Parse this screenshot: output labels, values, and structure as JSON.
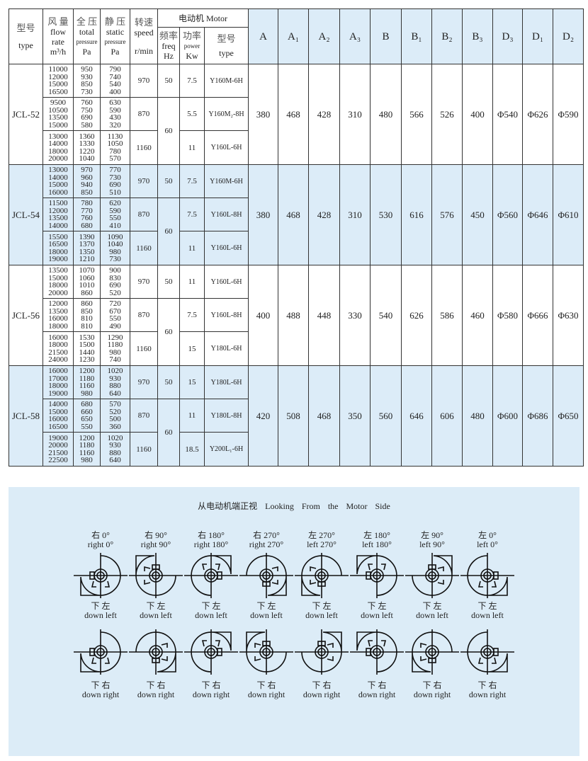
{
  "table": {
    "headers": {
      "type": {
        "cn": "型号",
        "en": "type"
      },
      "flow": {
        "cn": "风 量",
        "en1": "flow",
        "en2": "rate",
        "unit": "m³/h"
      },
      "total": {
        "cn": "全 压",
        "en1": "total",
        "en2": "pressure",
        "unit": "Pa"
      },
      "static": {
        "cn": "静 压",
        "en1": "static",
        "en2": "pressure",
        "unit": "Pa"
      },
      "speed": {
        "cn": "转速",
        "en": "speed",
        "unit": "r/min"
      },
      "motor": "电动机 Motor",
      "freq": {
        "cn": "频率",
        "en": "freq",
        "unit": "Hz"
      },
      "power": {
        "cn": "功率",
        "en": "power",
        "unit": "Kw"
      },
      "motor_type": {
        "cn": "型号",
        "en": "type"
      },
      "dims": [
        "A",
        "A₁",
        "A₂",
        "A₃",
        "B",
        "B₁",
        "B₂",
        "B₃",
        "D₃",
        "D₁",
        "D₂"
      ]
    },
    "groups": [
      {
        "model": "JCL-52",
        "freq_50": "50",
        "freq_60": "60",
        "rows": [
          {
            "flow": "11000\n12000\n15000\n16500",
            "total": "950\n930\n850\n730",
            "static": "790\n740\n540\n400",
            "speed": "970",
            "power": "7.5",
            "motor": "Y160M-6H"
          },
          {
            "flow": "9500\n10500\n13500\n15000",
            "total": "760\n750\n690\n580",
            "static": "630\n590\n430\n320",
            "speed": "870",
            "power": "5.5",
            "motor": "Y160M₂-8H"
          },
          {
            "flow": "13000\n14000\n18000\n20000",
            "total": "1360\n1330\n1220\n1040",
            "static": "1130\n1050\n780\n570",
            "speed": "1160",
            "power": "11",
            "motor": "Y160L-6H"
          }
        ],
        "dims": [
          "380",
          "468",
          "428",
          "310",
          "480",
          "566",
          "526",
          "400",
          "Φ540",
          "Φ626",
          "Φ590"
        ]
      },
      {
        "model": "JCL-54",
        "freq_50": "50",
        "freq_60": "60",
        "rows": [
          {
            "flow": "13000\n14000\n15000\n16000",
            "total": "970\n960\n940\n850",
            "static": "770\n730\n690\n510",
            "speed": "970",
            "power": "7.5",
            "motor": "Y160M-6H"
          },
          {
            "flow": "11500\n12000\n13500\n14000",
            "total": "780\n770\n760\n680",
            "static": "620\n590\n550\n410",
            "speed": "870",
            "power": "7.5",
            "motor": "Y160L-8H"
          },
          {
            "flow": "15500\n16500\n18000\n19000",
            "total": "1390\n1370\n1350\n1210",
            "static": "1090\n1040\n980\n730",
            "speed": "1160",
            "power": "11",
            "motor": "Y160L-6H"
          }
        ],
        "dims": [
          "380",
          "468",
          "428",
          "310",
          "530",
          "616",
          "576",
          "450",
          "Φ560",
          "Φ646",
          "Φ610"
        ]
      },
      {
        "model": "JCL-56",
        "freq_50": "50",
        "freq_60": "60",
        "rows": [
          {
            "flow": "13500\n15000\n18000\n20000",
            "total": "1070\n1060\n1010\n860",
            "static": "900\n830\n690\n520",
            "speed": "970",
            "power": "11",
            "motor": "Y160L-6H"
          },
          {
            "flow": "12000\n13500\n16000\n18000",
            "total": "860\n850\n810\n810",
            "static": "720\n670\n550\n490",
            "speed": "870",
            "power": "7.5",
            "motor": "Y160L-8H"
          },
          {
            "flow": "16000\n18000\n21500\n24000",
            "total": "1530\n1500\n1440\n1230",
            "static": "1290\n1180\n980\n740",
            "speed": "1160",
            "power": "15",
            "motor": "Y180L-6H"
          }
        ],
        "dims": [
          "400",
          "488",
          "448",
          "330",
          "540",
          "626",
          "586",
          "460",
          "Φ580",
          "Φ666",
          "Φ630"
        ]
      },
      {
        "model": "JCL-58",
        "freq_50": "50",
        "freq_60": "60",
        "rows": [
          {
            "flow": "16000\n17000\n18000\n19000",
            "total": "1200\n1180\n1160\n980",
            "static": "1020\n930\n880\n640",
            "speed": "970",
            "power": "15",
            "motor": "Y180L-6H"
          },
          {
            "flow": "14000\n15000\n16000\n16500",
            "total": "680\n660\n650\n550",
            "static": "570\n520\n500\n360",
            "speed": "870",
            "power": "11",
            "motor": "Y180L-8H"
          },
          {
            "flow": "19000\n20000\n21500\n22500",
            "total": "1200\n1180\n1160\n980",
            "static": "1020\n930\n880\n640",
            "speed": "1160",
            "power": "18.5",
            "motor": "Y200L₁-6H"
          }
        ],
        "dims": [
          "420",
          "508",
          "468",
          "350",
          "560",
          "646",
          "606",
          "480",
          "Φ600",
          "Φ686",
          "Φ650"
        ]
      }
    ]
  },
  "diagram": {
    "title": "从电动机端正视   Looking  From  the  Motor  Side",
    "top_row": [
      {
        "cn": "右  0°",
        "en": "right 0°",
        "bottom_cn": "下 左",
        "bottom_en": "down left"
      },
      {
        "cn": "右  90°",
        "en": "right 90°",
        "bottom_cn": "下 左",
        "bottom_en": "down left"
      },
      {
        "cn": "右  180°",
        "en": "right 180°",
        "bottom_cn": "下 左",
        "bottom_en": "down left"
      },
      {
        "cn": "右  270°",
        "en": "right 270°",
        "bottom_cn": "下 左",
        "bottom_en": "down left"
      },
      {
        "cn": "左  270°",
        "en": "left 270°",
        "bottom_cn": "下 左",
        "bottom_en": "down left"
      },
      {
        "cn": "左  180°",
        "en": "left 180°",
        "bottom_cn": "下 左",
        "bottom_en": "down left"
      },
      {
        "cn": "左  90°",
        "en": "left 90°",
        "bottom_cn": "下 左",
        "bottom_en": "down left"
      },
      {
        "cn": "左  0°",
        "en": "left 0°",
        "bottom_cn": "下 左",
        "bottom_en": "down left"
      }
    ],
    "bottom_row": [
      {
        "cn": "下 右",
        "en": "down right"
      },
      {
        "cn": "下 右",
        "en": "down right"
      },
      {
        "cn": "下 右",
        "en": "down right"
      },
      {
        "cn": "下 右",
        "en": "down right"
      },
      {
        "cn": "下 右",
        "en": "down right"
      },
      {
        "cn": "下 右",
        "en": "down right"
      },
      {
        "cn": "下 右",
        "en": "down right"
      },
      {
        "cn": "下 右",
        "en": "down right"
      }
    ]
  },
  "colors": {
    "row_highlight": "#dcecf8",
    "panel_bg": "#dcecf7",
    "border": "#333333"
  }
}
